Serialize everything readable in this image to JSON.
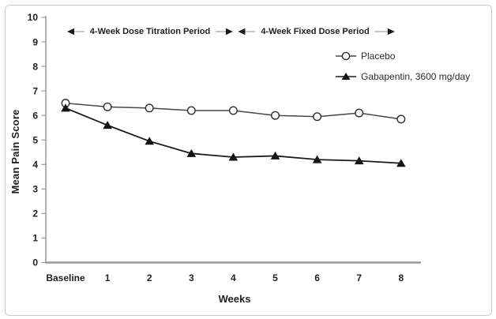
{
  "colors": {
    "axis": "#9a9a9a",
    "tick_text": "#1f1f1f",
    "annotation_line": "#a8a8a8",
    "annotation_arrow": "#1a1a1a",
    "placebo_line": "#474747",
    "gabapentin_line": "#1a1a1a",
    "frame_border": "#cbcbcb",
    "background": "#ffffff"
  },
  "chart_data": {
    "type": "line",
    "title": "",
    "categories": [
      "Baseline",
      "1",
      "2",
      "3",
      "4",
      "5",
      "6",
      "7",
      "8"
    ],
    "series": [
      {
        "name": "Placebo",
        "marker": "circle-open",
        "values": [
          6.5,
          6.35,
          6.3,
          6.2,
          6.2,
          6.0,
          5.95,
          6.1,
          5.85
        ]
      },
      {
        "name": "Gabapentin, 3600 mg/day",
        "marker": "triangle-filled",
        "values": [
          6.3,
          5.6,
          4.95,
          4.45,
          4.3,
          4.35,
          4.2,
          4.15,
          4.05
        ]
      }
    ],
    "xlabel": "Weeks",
    "ylabel": "Mean Pain Score",
    "ylim": [
      0,
      10
    ],
    "ytick_step": 1,
    "grid": false,
    "legend_position": "upper-right-inside",
    "annotations": [
      {
        "text": "4-Week Dose Titration Period",
        "from_category": "Baseline",
        "to_category": "4",
        "arrow": "double"
      },
      {
        "text": "4-Week Fixed Dose Period",
        "from_category": "4",
        "to_category": "8",
        "arrow": "double"
      }
    ]
  }
}
